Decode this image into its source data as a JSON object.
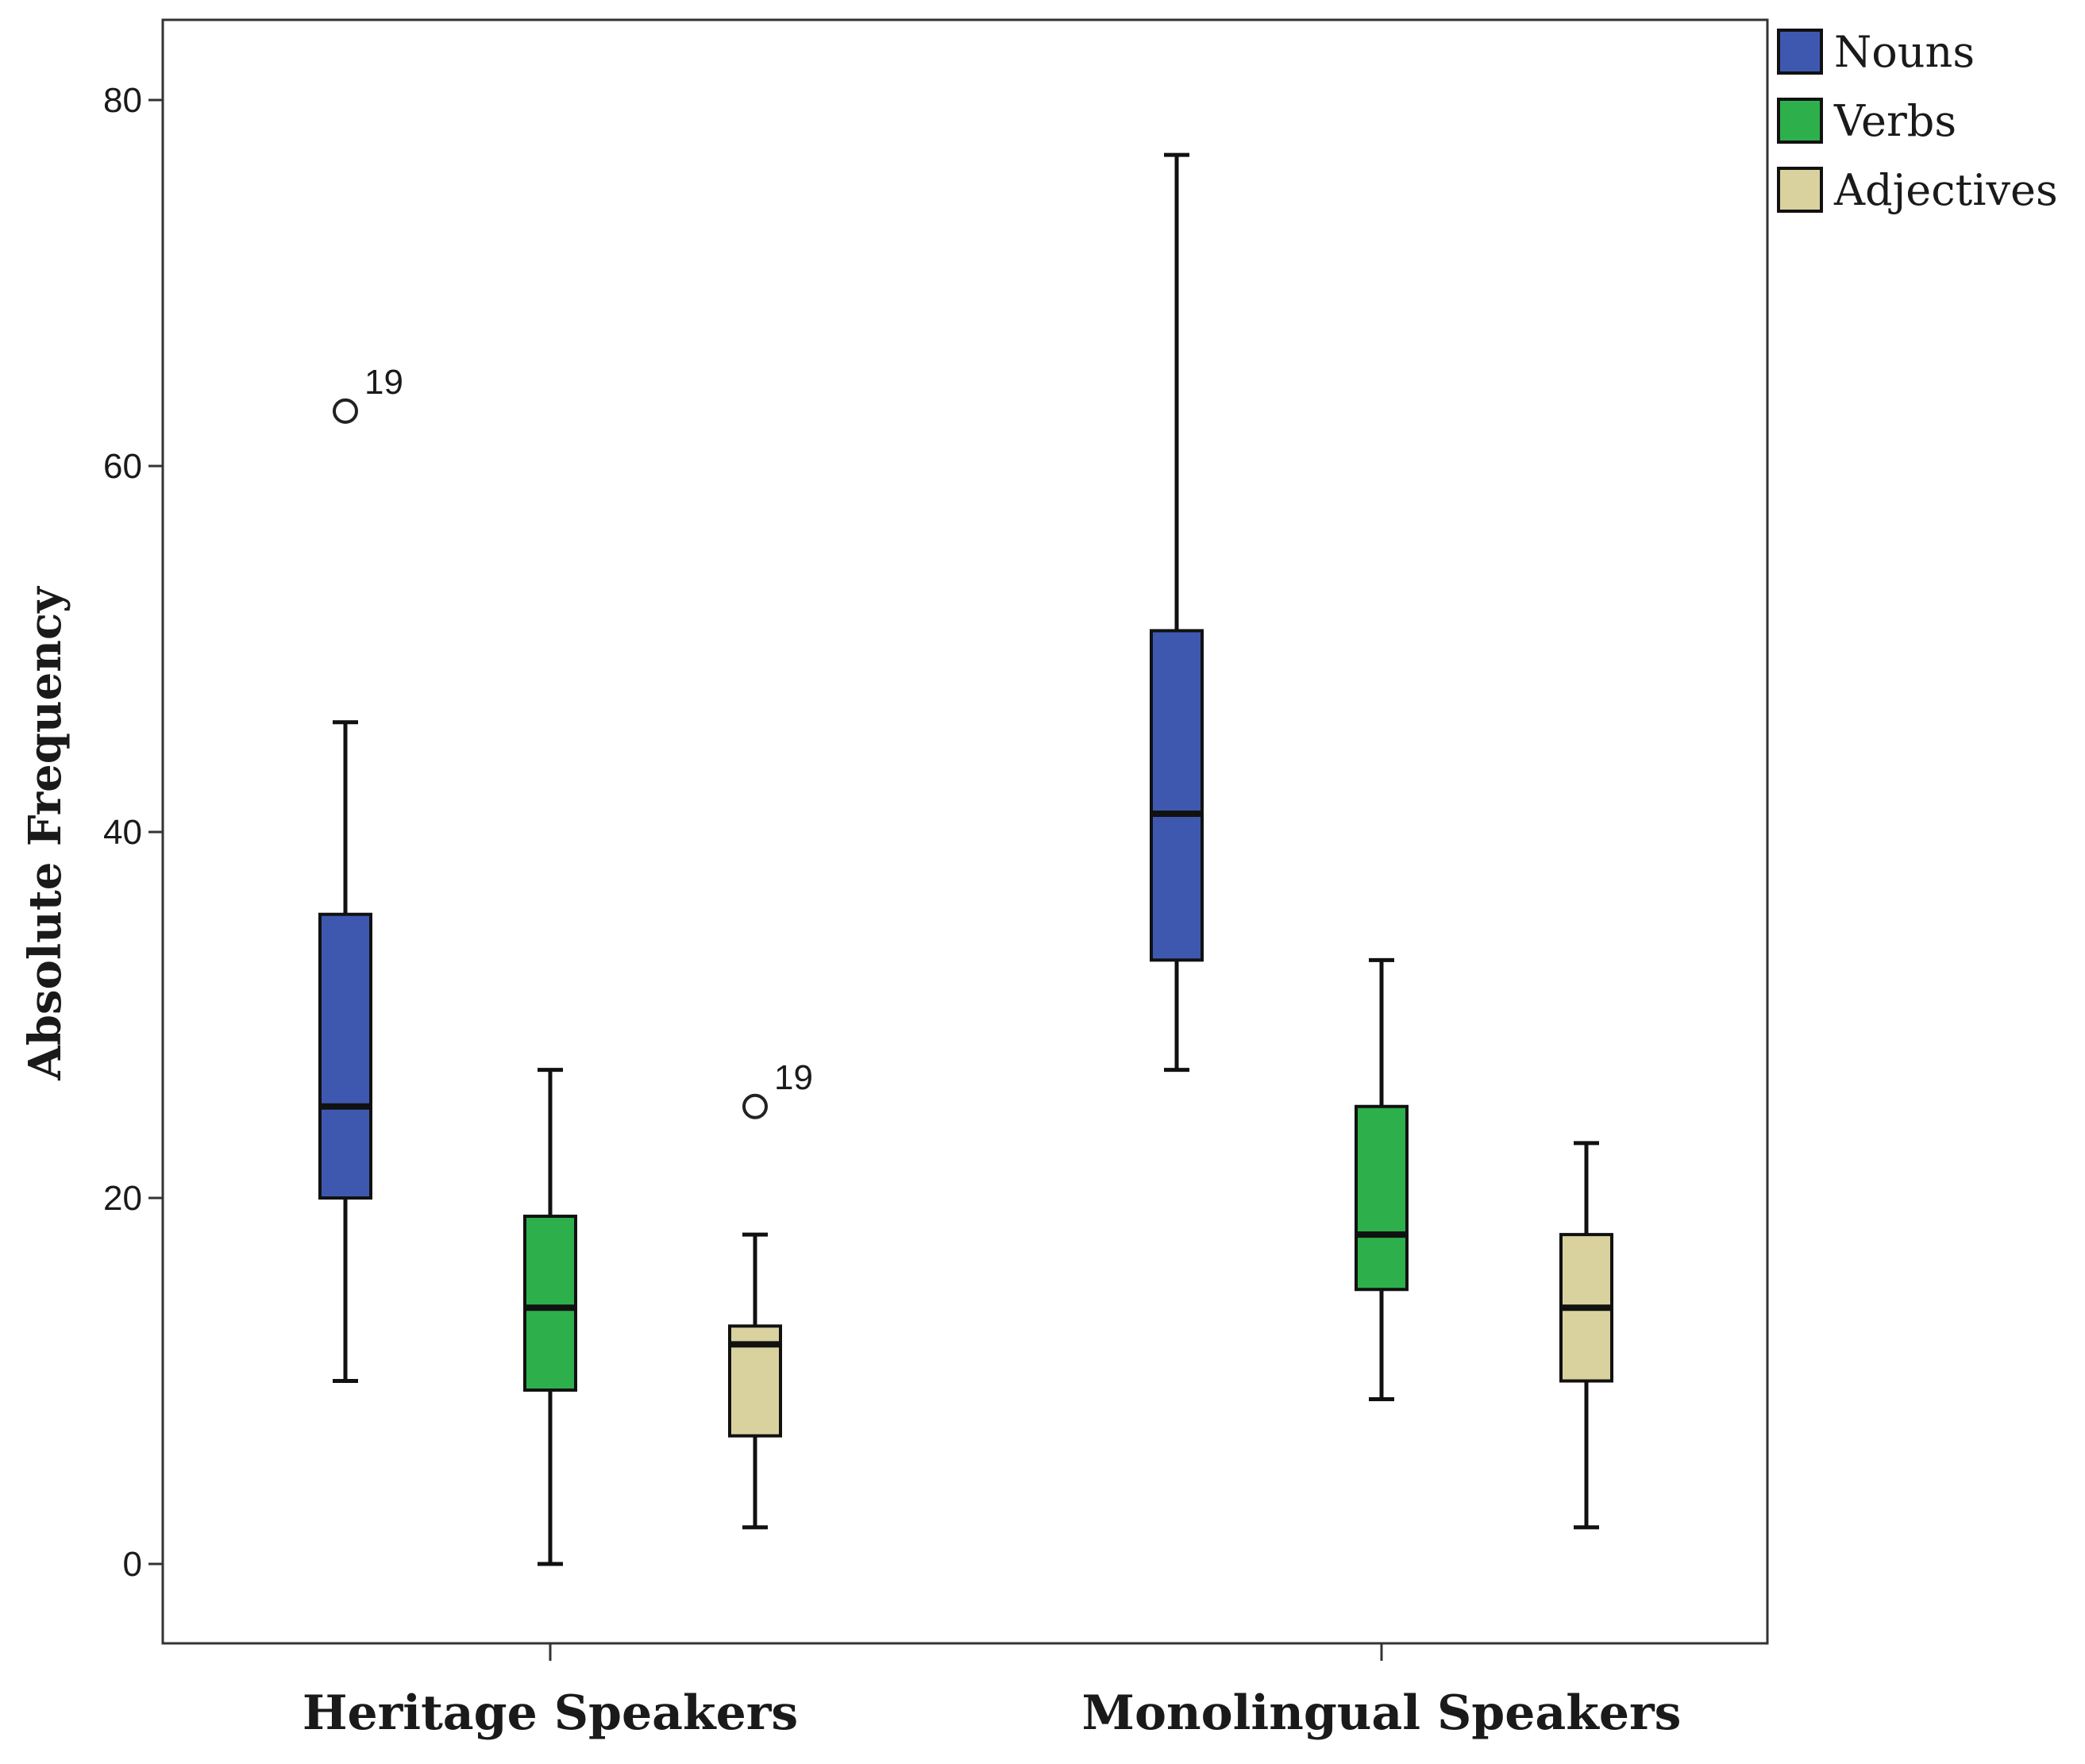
{
  "chart_data": {
    "type": "boxplot",
    "title": "",
    "xlabel": "",
    "ylabel": "Absolute Frequency",
    "ylim": [
      -9,
      84
    ],
    "yticks": [
      0,
      20,
      40,
      60,
      80
    ],
    "grid": false,
    "legend_position": "top-right",
    "categories": [
      "Heritage Speakers",
      "Monolingual Speakers"
    ],
    "series": [
      {
        "name": "Nouns",
        "color": "#3E58B0",
        "boxes": [
          {
            "category": "Heritage Speakers",
            "whisker_low": 10,
            "q1": 20,
            "median": 25,
            "q3": 35.5,
            "whisker_high": 46,
            "outliers": [
              {
                "value": 63,
                "label": "19"
              }
            ]
          },
          {
            "category": "Monolingual Speakers",
            "whisker_low": 27,
            "q1": 33,
            "median": 41,
            "q3": 51,
            "whisker_high": 77,
            "outliers": []
          }
        ]
      },
      {
        "name": "Verbs",
        "color": "#2DB04B",
        "boxes": [
          {
            "category": "Heritage Speakers",
            "whisker_low": 0,
            "q1": 9.5,
            "median": 14,
            "q3": 19,
            "whisker_high": 27,
            "outliers": []
          },
          {
            "category": "Monolingual Speakers",
            "whisker_low": 9,
            "q1": 15,
            "median": 18,
            "q3": 25,
            "whisker_high": 33,
            "outliers": []
          }
        ]
      },
      {
        "name": "Adjectives",
        "color": "#D9D29E",
        "boxes": [
          {
            "category": "Heritage Speakers",
            "whisker_low": 2,
            "q1": 7,
            "median": 12,
            "q3": 13,
            "whisker_high": 18,
            "outliers": [
              {
                "value": 25,
                "label": "19"
              }
            ]
          },
          {
            "category": "Monolingual Speakers",
            "whisker_low": 2,
            "q1": 10,
            "median": 14,
            "q3": 18,
            "whisker_high": 23,
            "outliers": []
          }
        ]
      }
    ]
  }
}
